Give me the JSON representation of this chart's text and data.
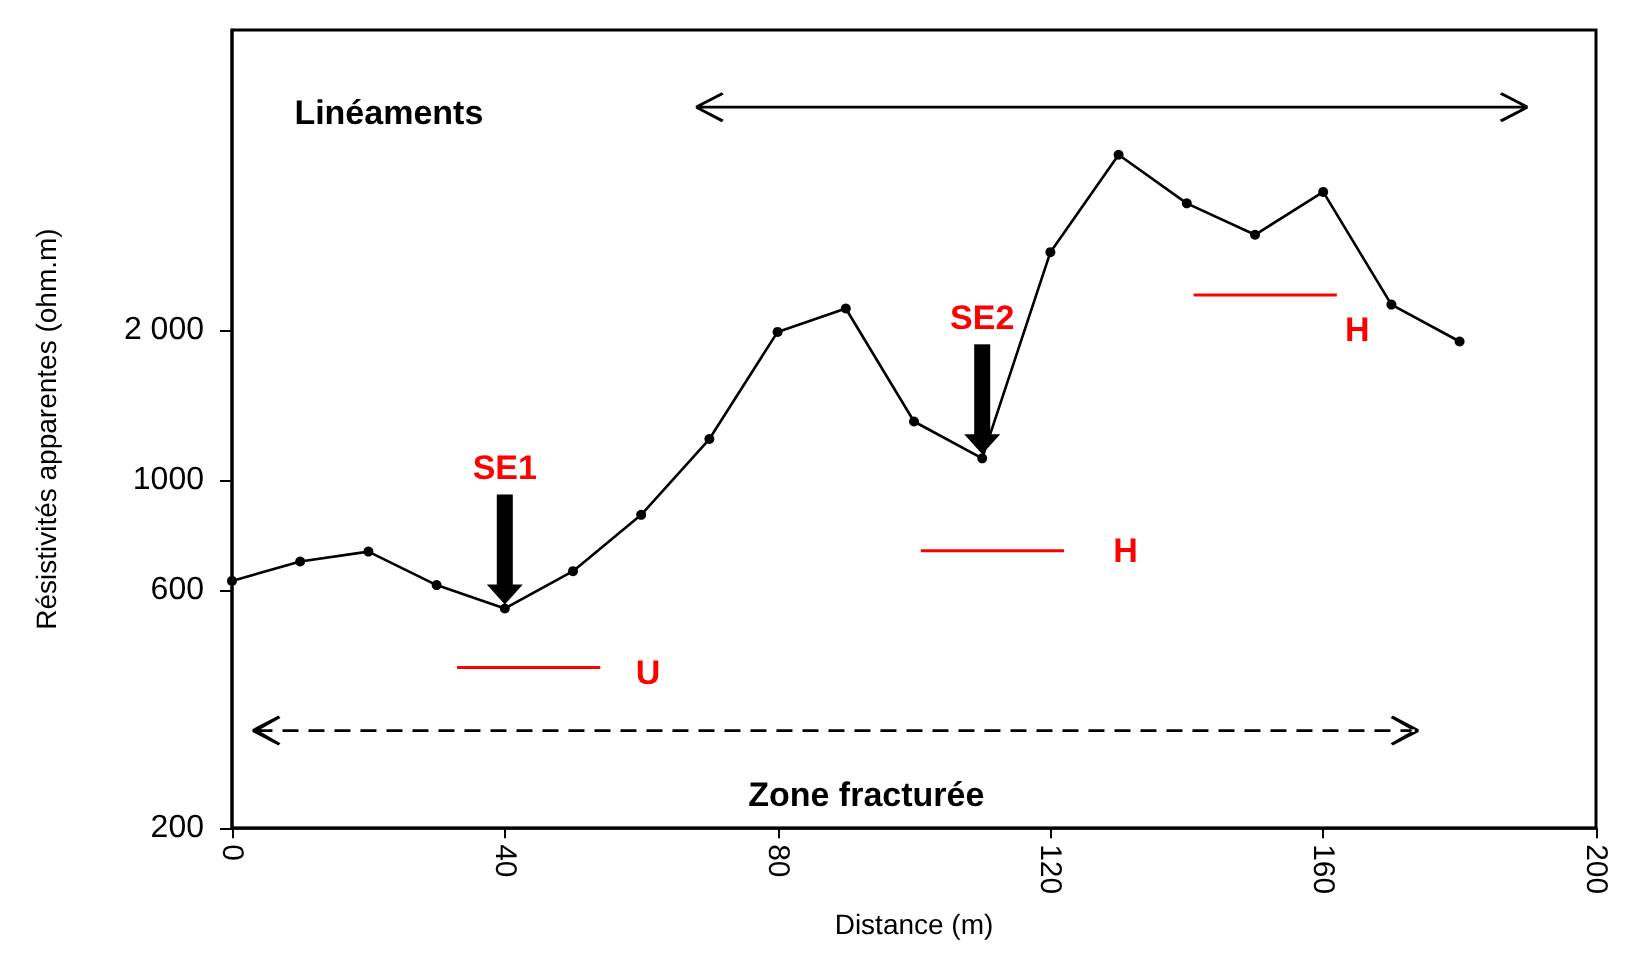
{
  "chart_data": {
    "type": "line",
    "xlabel": "Distance (m)",
    "ylabel": "Résistivités apparentes (ohm.m)",
    "x": [
      0,
      10,
      20,
      30,
      40,
      50,
      60,
      70,
      80,
      90,
      100,
      110,
      120,
      130,
      140,
      150,
      160,
      170,
      180
    ],
    "series": [
      {
        "color": "#000000",
        "marker": "circle",
        "values": [
          627,
          686,
          718,
          615,
          552,
          656,
          851,
          1208,
          1982,
          2208,
          1310,
          1105,
          2865,
          4495,
          3590,
          3105,
          3785,
          2249,
          1896
        ]
      },
      {
        "color": "#ff0000",
        "marker": "none",
        "x": [
          33,
          54
        ],
        "values": [
          420,
          420
        ]
      },
      {
        "color": "#ff0000",
        "marker": "none",
        "x": [
          101,
          122
        ],
        "values": [
          721,
          721
        ]
      },
      {
        "color": "#ff0000",
        "marker": "none",
        "x": [
          141,
          162
        ],
        "values": [
          2351,
          2351
        ]
      }
    ],
    "log": "y",
    "xlim": [
      0,
      200
    ],
    "xticks": [
      0,
      40,
      80,
      120,
      160,
      200
    ],
    "ylim": [
      200,
      8000
    ],
    "yticks": [
      200,
      600,
      1000,
      {
        "value": 2000,
        "label": "2 000"
      }
    ],
    "annotations": [
      "SE1",
      "SE2",
      "U",
      "H",
      "H",
      "Linéaments",
      "Zone fracturée"
    ]
  }
}
